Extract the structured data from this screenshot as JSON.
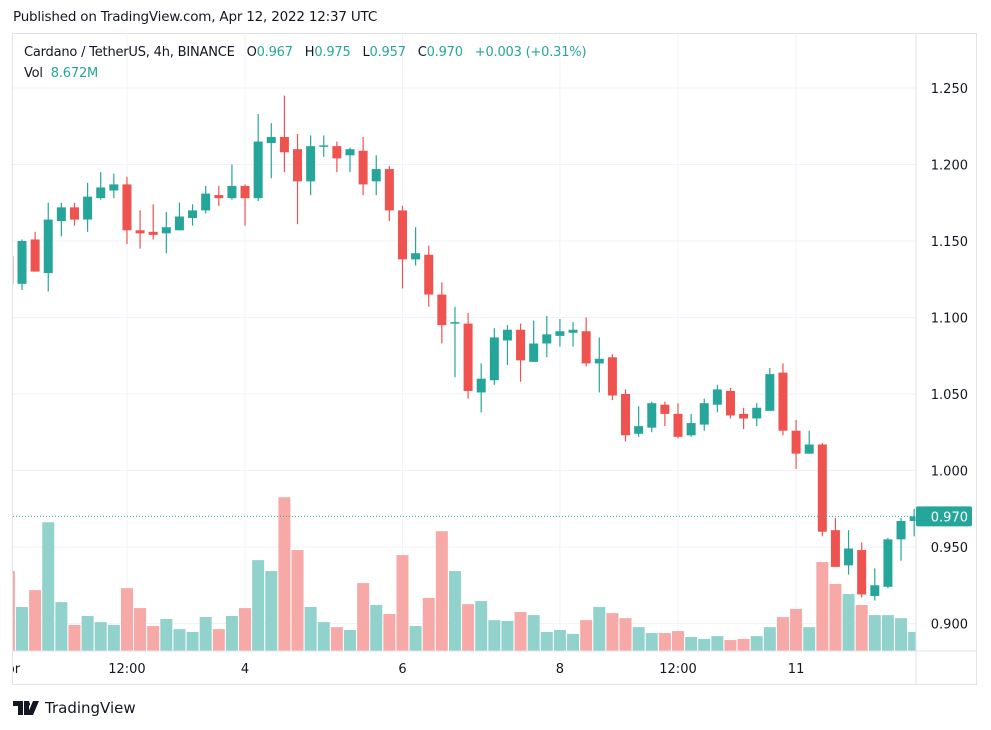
{
  "published": "Published on TradingView.com, Apr 12, 2022 12:37 UTC",
  "legend": {
    "symbol": "Cardano / TetherUS, 4h, BINANCE",
    "o_label": "O",
    "o": "0.967",
    "h_label": "H",
    "h": "0.975",
    "l_label": "L",
    "l": "0.957",
    "c_label": "C",
    "c": "0.970",
    "change": "+0.003 (+0.31%)",
    "vol_label": "Vol",
    "vol": "8.672M"
  },
  "footer": {
    "brand": "TradingView",
    "logo_icon": "tradingview-logo-icon"
  },
  "colors": {
    "up": "#26a69a",
    "down": "#ef5350",
    "up_vol": "#92d2cc",
    "down_vol": "#f7a9a7",
    "grid": "#f0f3fa"
  },
  "chart_data": {
    "type": "candlestick",
    "title": "Cardano / TetherUS, 4h, BINANCE",
    "ylim": [
      0.88,
      1.27
    ],
    "y_ticks": [
      "0.900",
      "0.950",
      "1.000",
      "1.050",
      "1.100",
      "1.150",
      "1.200",
      "1.250"
    ],
    "last_price": 0.97,
    "last_price_label": "0.970",
    "x_ticks": [
      {
        "label": "Apr",
        "index": 0
      },
      {
        "label": "12:00",
        "index": 9
      },
      {
        "label": "4",
        "index": 18
      },
      {
        "label": "6",
        "index": 30
      },
      {
        "label": "8",
        "index": 42
      },
      {
        "label": "12:00",
        "index": 51
      },
      {
        "label": "11",
        "index": 60
      }
    ],
    "ohlc": [
      [
        1.14,
        1.145,
        1.118,
        1.122
      ],
      [
        1.122,
        1.151,
        1.118,
        1.15
      ],
      [
        1.151,
        1.156,
        1.13,
        1.13
      ],
      [
        1.129,
        1.175,
        1.117,
        1.164
      ],
      [
        1.163,
        1.175,
        1.153,
        1.172
      ],
      [
        1.172,
        1.175,
        1.16,
        1.164
      ],
      [
        1.164,
        1.188,
        1.156,
        1.179
      ],
      [
        1.178,
        1.195,
        1.177,
        1.185
      ],
      [
        1.183,
        1.194,
        1.178,
        1.187
      ],
      [
        1.187,
        1.192,
        1.148,
        1.157
      ],
      [
        1.157,
        1.17,
        1.145,
        1.155
      ],
      [
        1.156,
        1.174,
        1.151,
        1.154
      ],
      [
        1.155,
        1.169,
        1.142,
        1.159
      ],
      [
        1.157,
        1.175,
        1.157,
        1.166
      ],
      [
        1.165,
        1.174,
        1.16,
        1.17
      ],
      [
        1.17,
        1.186,
        1.168,
        1.181
      ],
      [
        1.18,
        1.186,
        1.173,
        1.178
      ],
      [
        1.178,
        1.2,
        1.177,
        1.186
      ],
      [
        1.186,
        1.187,
        1.16,
        1.178
      ],
      [
        1.178,
        1.233,
        1.176,
        1.215
      ],
      [
        1.214,
        1.227,
        1.191,
        1.218
      ],
      [
        1.218,
        1.245,
        1.195,
        1.208
      ],
      [
        1.21,
        1.22,
        1.161,
        1.189
      ],
      [
        1.189,
        1.219,
        1.18,
        1.212
      ],
      [
        1.212,
        1.219,
        1.205,
        1.2125
      ],
      [
        1.212,
        1.215,
        1.195,
        1.204
      ],
      [
        1.206,
        1.211,
        1.195,
        1.21
      ],
      [
        1.209,
        1.218,
        1.18,
        1.187
      ],
      [
        1.189,
        1.206,
        1.18,
        1.197
      ],
      [
        1.197,
        1.199,
        1.163,
        1.17
      ],
      [
        1.17,
        1.173,
        1.119,
        1.138
      ],
      [
        1.138,
        1.159,
        1.134,
        1.142
      ],
      [
        1.141,
        1.147,
        1.107,
        1.115
      ],
      [
        1.115,
        1.123,
        1.083,
        1.095
      ],
      [
        1.096,
        1.107,
        1.061,
        1.097
      ],
      [
        1.096,
        1.103,
        1.047,
        1.052
      ],
      [
        1.051,
        1.07,
        1.038,
        1.06
      ],
      [
        1.059,
        1.093,
        1.056,
        1.087
      ],
      [
        1.085,
        1.095,
        1.069,
        1.092
      ],
      [
        1.092,
        1.096,
        1.058,
        1.072
      ],
      [
        1.071,
        1.098,
        1.071,
        1.083
      ],
      [
        1.083,
        1.101,
        1.074,
        1.089
      ],
      [
        1.088,
        1.099,
        1.081,
        1.091
      ],
      [
        1.09,
        1.097,
        1.081,
        1.092
      ],
      [
        1.091,
        1.1,
        1.068,
        1.07
      ],
      [
        1.07,
        1.087,
        1.051,
        1.073
      ],
      [
        1.074,
        1.076,
        1.046,
        1.049
      ],
      [
        1.05,
        1.053,
        1.019,
        1.023
      ],
      [
        1.024,
        1.042,
        1.022,
        1.029
      ],
      [
        1.028,
        1.045,
        1.025,
        1.044
      ],
      [
        1.043,
        1.045,
        1.029,
        1.037
      ],
      [
        1.037,
        1.044,
        1.021,
        1.022
      ],
      [
        1.023,
        1.037,
        1.022,
        1.031
      ],
      [
        1.03,
        1.047,
        1.026,
        1.044
      ],
      [
        1.043,
        1.056,
        1.038,
        1.053
      ],
      [
        1.052,
        1.054,
        1.034,
        1.036
      ],
      [
        1.037,
        1.041,
        1.027,
        1.034
      ],
      [
        1.034,
        1.044,
        1.029,
        1.041
      ],
      [
        1.039,
        1.067,
        1.039,
        1.063
      ],
      [
        1.064,
        1.07,
        1.023,
        1.026
      ],
      [
        1.026,
        1.033,
        1.001,
        1.011
      ],
      [
        1.011,
        1.026,
        1.011,
        1.017
      ],
      [
        1.017,
        1.018,
        0.957,
        0.96
      ],
      [
        0.961,
        0.969,
        0.937,
        0.937
      ],
      [
        0.938,
        0.961,
        0.932,
        0.949
      ],
      [
        0.948,
        0.953,
        0.917,
        0.919
      ],
      [
        0.918,
        0.936,
        0.915,
        0.925
      ],
      [
        0.924,
        0.956,
        0.923,
        0.955
      ],
      [
        0.955,
        0.969,
        0.941,
        0.967
      ],
      [
        0.967,
        0.975,
        0.957,
        0.97
      ]
    ],
    "volume_millions": [
      36.5,
      20.1,
      27.8,
      58.8,
      22.3,
      11.9,
      16.0,
      13.2,
      11.9,
      28.7,
      19.6,
      11.4,
      14.6,
      10.0,
      8.7,
      15.5,
      10.0,
      16.0,
      19.6,
      41.5,
      36.5,
      70.2,
      46.1,
      20.1,
      13.2,
      10.9,
      9.6,
      31.0,
      21.0,
      16.9,
      43.8,
      11.4,
      24.2,
      54.7,
      36.5,
      21.4,
      22.8,
      14.1,
      13.7,
      17.8,
      16.4,
      8.7,
      9.6,
      7.8,
      14.1,
      20.1,
      17.3,
      15.0,
      10.9,
      8.2,
      8.2,
      9.1,
      6.4,
      5.5,
      6.8,
      5.0,
      5.5,
      6.8,
      10.9,
      15.5,
      19.2,
      10.9,
      40.6,
      30.6,
      26.0,
      21.0,
      16.4,
      16.4,
      15.0,
      8.672
    ]
  }
}
